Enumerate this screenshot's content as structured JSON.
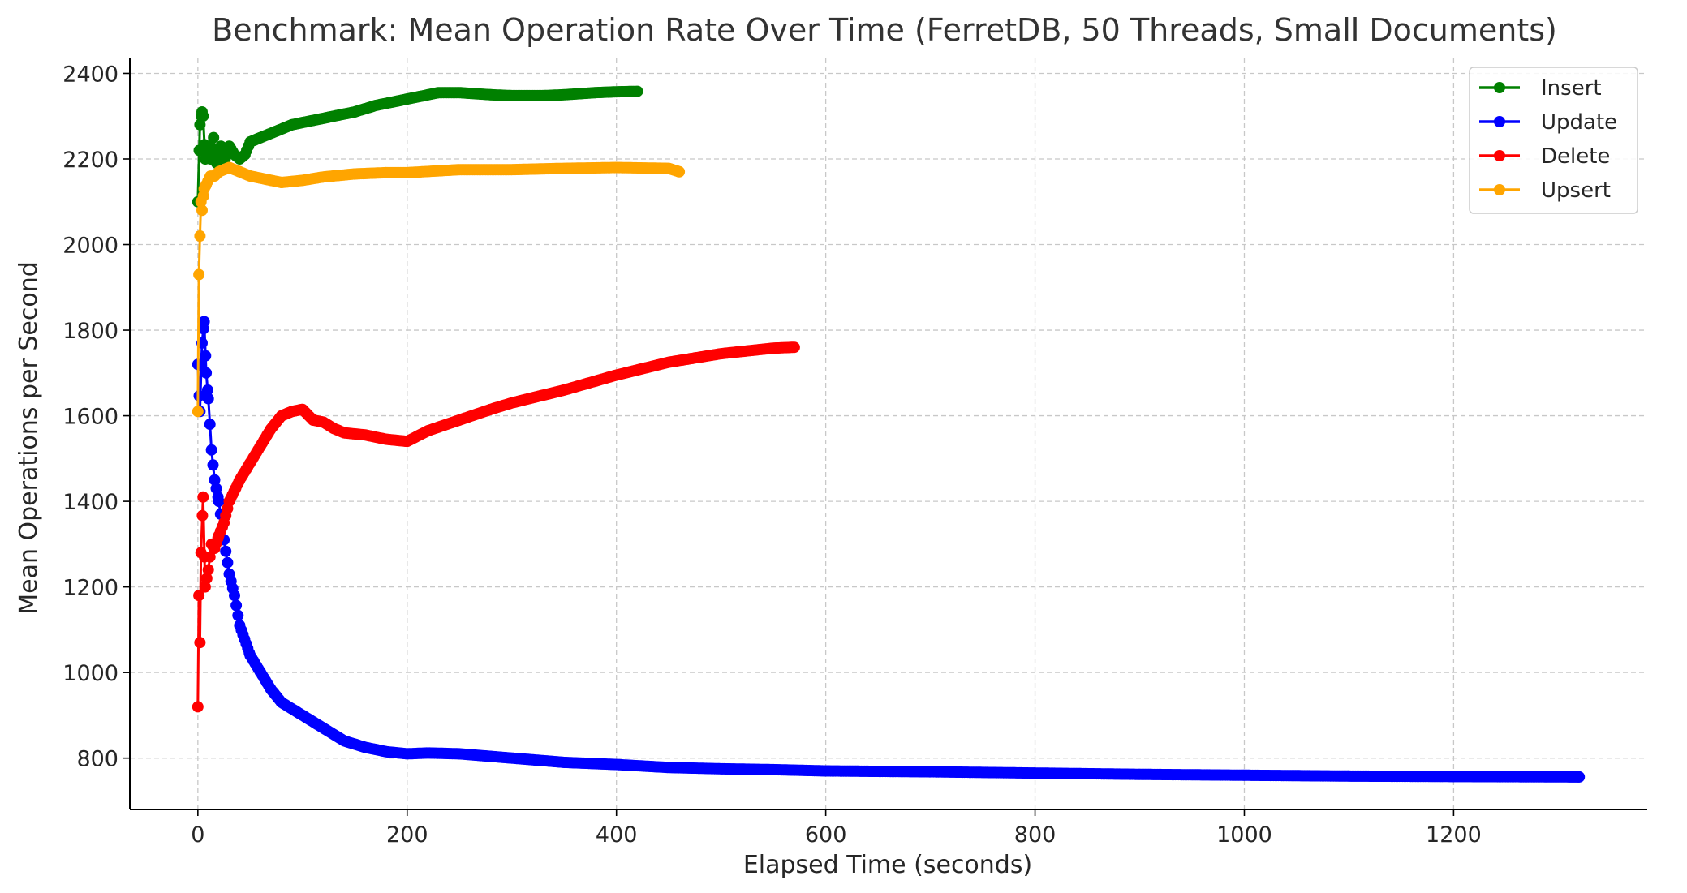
{
  "chart_data": {
    "type": "line",
    "title": "Benchmark: Mean Operation Rate Over Time (FerretDB, 50 Threads, Small Documents)",
    "xlabel": "Elapsed Time (seconds)",
    "ylabel": "Mean Operations per Second",
    "xlim": [
      -65,
      1385
    ],
    "ylim": [
      680,
      2435
    ],
    "xticks": [
      0,
      200,
      400,
      600,
      800,
      1000,
      1200
    ],
    "yticks": [
      800,
      1000,
      1200,
      1400,
      1600,
      1800,
      2000,
      2200,
      2400
    ],
    "grid": true,
    "legend": "top-right",
    "colors": {
      "Insert": "#008000",
      "Update": "#0000ff",
      "Delete": "#ff0000",
      "Upsert": "#ffa500"
    },
    "series": [
      {
        "name": "Insert",
        "color": "#008000",
        "x": [
          0,
          2,
          4,
          5,
          7,
          10,
          12,
          15,
          18,
          22,
          26,
          30,
          35,
          40,
          45,
          50,
          60,
          75,
          90,
          110,
          130,
          150,
          170,
          200,
          230,
          250,
          280,
          300,
          330,
          350,
          380,
          400,
          420
        ],
        "y": [
          2100,
          2280,
          2310,
          2300,
          2200,
          2230,
          2200,
          2250,
          2190,
          2230,
          2200,
          2230,
          2210,
          2200,
          2210,
          2240,
          2250,
          2265,
          2280,
          2290,
          2300,
          2310,
          2325,
          2340,
          2355,
          2355,
          2350,
          2348,
          2348,
          2350,
          2355,
          2357,
          2358
        ]
      },
      {
        "name": "Update",
        "color": "#0000ff",
        "x": [
          0,
          2,
          4,
          6,
          8,
          10,
          13,
          16,
          20,
          25,
          30,
          35,
          40,
          50,
          60,
          70,
          80,
          100,
          120,
          140,
          160,
          180,
          200,
          220,
          250,
          300,
          350,
          400,
          450,
          500,
          550,
          600,
          700,
          800,
          900,
          1000,
          1100,
          1200,
          1320
        ],
        "y": [
          1720,
          1610,
          1770,
          1820,
          1700,
          1640,
          1520,
          1450,
          1400,
          1310,
          1230,
          1180,
          1110,
          1040,
          1000,
          960,
          930,
          900,
          870,
          840,
          825,
          815,
          810,
          812,
          810,
          800,
          790,
          785,
          778,
          775,
          773,
          770,
          768,
          765,
          762,
          760,
          758,
          757,
          756
        ]
      },
      {
        "name": "Delete",
        "color": "#ff0000",
        "x": [
          0,
          1,
          2,
          3,
          5,
          7,
          10,
          13,
          16,
          20,
          25,
          30,
          40,
          50,
          60,
          70,
          80,
          90,
          100,
          110,
          120,
          130,
          140,
          160,
          180,
          200,
          220,
          250,
          280,
          300,
          350,
          400,
          450,
          500,
          550,
          570
        ],
        "y": [
          920,
          1180,
          1070,
          1280,
          1410,
          1200,
          1240,
          1300,
          1290,
          1320,
          1350,
          1400,
          1450,
          1490,
          1530,
          1570,
          1600,
          1610,
          1615,
          1590,
          1585,
          1570,
          1560,
          1555,
          1545,
          1540,
          1565,
          1590,
          1615,
          1630,
          1660,
          1695,
          1725,
          1745,
          1758,
          1760
        ]
      },
      {
        "name": "Upsert",
        "color": "#ffa500",
        "x": [
          0,
          1,
          2,
          3,
          4,
          6,
          8,
          12,
          16,
          20,
          25,
          30,
          40,
          50,
          60,
          70,
          80,
          100,
          120,
          150,
          180,
          200,
          250,
          300,
          350,
          400,
          450,
          460
        ],
        "y": [
          1610,
          1930,
          2020,
          2100,
          2080,
          2130,
          2140,
          2160,
          2160,
          2170,
          2175,
          2180,
          2170,
          2160,
          2155,
          2150,
          2145,
          2150,
          2158,
          2165,
          2168,
          2168,
          2175,
          2175,
          2178,
          2180,
          2178,
          2170
        ]
      }
    ]
  }
}
